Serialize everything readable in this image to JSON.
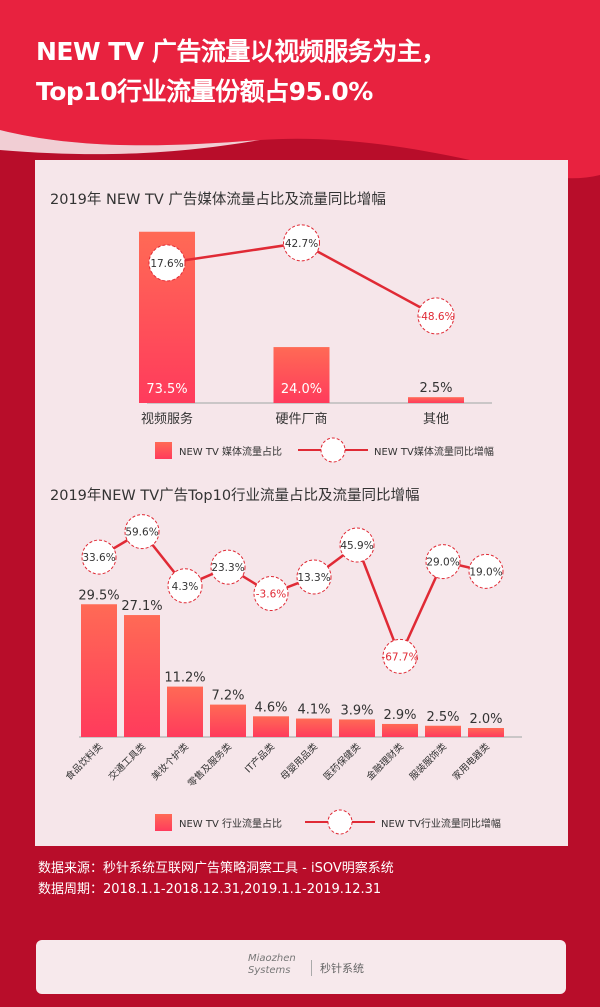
{
  "title_line1": "NEW TV 广告流量以视频服务为主，",
  "title_line2": "Top10行业流量份额占95.0%",
  "colors": {
    "background": "#b80d2a",
    "header": "#e8223f",
    "bar_top": "#ff6a55",
    "bar_bottom": "#ff3b5c",
    "line": "#e02a35",
    "negative_label": "#e02a35"
  },
  "chart_data": [
    {
      "type": "bar+line",
      "title": "2019年 NEW TV 广告媒体流量占比及流量同比增幅",
      "categories": [
        "视频服务",
        "硬件厂商",
        "其他"
      ],
      "series": [
        {
          "name": "NEW TV 媒体流量占比",
          "type": "bar",
          "values": [
            73.5,
            24.0,
            2.5
          ],
          "labels": [
            "73.5%",
            "24.0%",
            "2.5%"
          ]
        },
        {
          "name": "NEW TV媒体流量同比增幅",
          "type": "line",
          "values": [
            17.6,
            42.7,
            -48.6
          ],
          "labels": [
            "17.6%",
            "42.7%",
            "-48.6%"
          ]
        }
      ],
      "legend": "bottom"
    },
    {
      "type": "bar+line",
      "title": "2019年NEW TV广告Top10行业流量占比及流量同比增幅",
      "categories": [
        "食品饮料类",
        "交通工具类",
        "美妆个护类",
        "零售及服务类",
        "IT产品类",
        "母婴用品类",
        "医药保健类",
        "金融理财类",
        "服装服饰类",
        "家用电器类"
      ],
      "series": [
        {
          "name": "NEW TV 行业流量占比",
          "type": "bar",
          "values": [
            29.5,
            27.1,
            11.2,
            7.2,
            4.6,
            4.1,
            3.9,
            2.9,
            2.5,
            2.0
          ],
          "labels": [
            "29.5%",
            "27.1%",
            "11.2%",
            "7.2%",
            "4.6%",
            "4.1%",
            "3.9%",
            "2.9%",
            "2.5%",
            "2.0%"
          ]
        },
        {
          "name": "NEW TV行业流量同比增幅",
          "type": "line",
          "values": [
            33.6,
            59.6,
            4.3,
            23.3,
            -3.6,
            13.3,
            45.9,
            -67.7,
            29.0,
            19.0
          ],
          "labels": [
            "33.6%",
            "59.6%",
            "4.3%",
            "23.3%",
            "-3.6%",
            "13.3%",
            "45.9%",
            "-67.7%",
            "29.0%",
            "19.0%"
          ]
        }
      ],
      "legend": "bottom"
    }
  ],
  "source": {
    "line1": "数据来源：秒针系统互联网广告策略洞察工具 - iSOV明察系统",
    "line2": "数据周期：2018.1.1-2018.12.31,2019.1.1-2019.12.31"
  },
  "footer": {
    "logo": "Miaozhen Systems",
    "brand": "秒针系统"
  }
}
